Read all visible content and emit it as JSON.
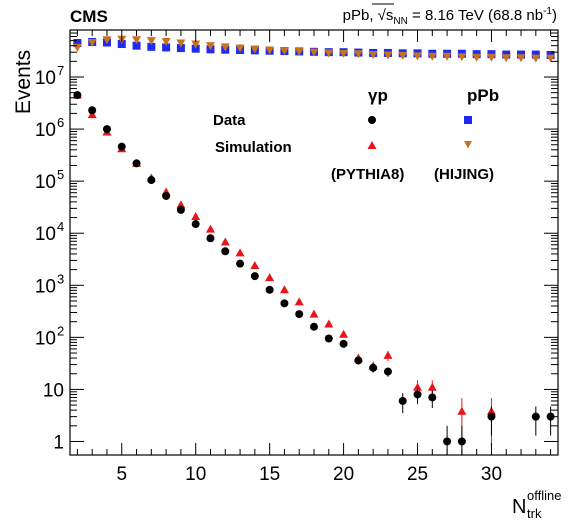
{
  "header": {
    "experiment": "CMS",
    "system_prefix": "pPb, ",
    "sqrt_symbol": "√",
    "s_var": "s",
    "s_sub": "NN",
    "energy": " = 8.16 TeV (68.8 nb",
    "lumi_exp": "-1",
    "close_paren": ")"
  },
  "legend": {
    "col_gamma": "γp",
    "col_ppb": "pPb",
    "row_data": "Data",
    "row_sim": "Simulation",
    "gen_gamma": "(PYTHIA8)",
    "gen_ppb": "(HIJING)"
  },
  "colors": {
    "data_gp": "#000000",
    "sim_gp": "#e8151a",
    "data_ppb": "#1f2bef",
    "sim_ppb": "#c8721c"
  },
  "chart_data": {
    "type": "scatter",
    "title": "",
    "ylabel": "Events",
    "xlabel_main": "N",
    "xlabel_sup": "offline",
    "xlabel_sub": "trk",
    "xlim": [
      1.5,
      34.5
    ],
    "ylim": [
      0.55,
      80000000
    ],
    "yscale": "log",
    "x_ticks": [
      5,
      10,
      15,
      20,
      25,
      30
    ],
    "y_ticks": [
      {
        "v": 1,
        "label": "1",
        "exp": ""
      },
      {
        "v": 10,
        "label": "10",
        "exp": ""
      },
      {
        "v": 100,
        "label": "10",
        "exp": "2"
      },
      {
        "v": 1000,
        "label": "10",
        "exp": "3"
      },
      {
        "v": 10000,
        "label": "10",
        "exp": "4"
      },
      {
        "v": 100000,
        "label": "10",
        "exp": "5"
      },
      {
        "v": 1000000,
        "label": "10",
        "exp": "6"
      },
      {
        "v": 10000000,
        "label": "10",
        "exp": "7"
      }
    ],
    "series": [
      {
        "name": "Data pPb",
        "marker": "square",
        "color": "#1f2bef",
        "x": [
          2,
          3,
          4,
          5,
          6,
          7,
          8,
          9,
          10,
          11,
          12,
          13,
          14,
          15,
          16,
          17,
          18,
          19,
          20,
          21,
          22,
          23,
          24,
          25,
          26,
          27,
          28,
          29,
          30,
          31,
          32,
          33,
          34
        ],
        "y": [
          45000000,
          47000000,
          46000000,
          43000000,
          40000000,
          38000000,
          37000000,
          36000000,
          35000000,
          34000000,
          33500000,
          33000000,
          32500000,
          32000000,
          31500000,
          31000000,
          30500000,
          30000000,
          30000000,
          29500000,
          29000000,
          29000000,
          28500000,
          28500000,
          28000000,
          28000000,
          28000000,
          27500000,
          27500000,
          27000000,
          27000000,
          27000000,
          26500000
        ]
      },
      {
        "name": "Simulation pPb",
        "marker": "triangle-down",
        "color": "#c8721c",
        "x": [
          2,
          3,
          4,
          5,
          6,
          7,
          8,
          9,
          10,
          11,
          12,
          13,
          14,
          15,
          16,
          17,
          18,
          19,
          20,
          21,
          22,
          23,
          24,
          25,
          26,
          27,
          28,
          29,
          30,
          31,
          32,
          33,
          34
        ],
        "y": [
          37000000,
          46000000,
          52000000,
          53000000,
          52000000,
          50000000,
          48000000,
          45000000,
          43000000,
          40000000,
          38000000,
          36000000,
          34500000,
          33000000,
          32000000,
          31000000,
          30000000,
          29000000,
          28500000,
          28000000,
          27000000,
          26500000,
          26000000,
          25500000,
          25000000,
          25000000,
          24500000,
          24000000,
          24000000,
          23500000,
          23500000,
          23000000,
          23000000
        ]
      },
      {
        "name": "Simulation γp",
        "marker": "triangle-up",
        "color": "#e8151a",
        "x": [
          2,
          3,
          4,
          5,
          6,
          7,
          8,
          9,
          10,
          11,
          12,
          13,
          14,
          15,
          16,
          17,
          18,
          19,
          20,
          21,
          22,
          23,
          24,
          25,
          26,
          27,
          28,
          29,
          30
        ],
        "y": [
          4500000,
          1900000,
          880000,
          420000,
          220000,
          115000,
          62000,
          35000,
          21000,
          12000,
          6800,
          4200,
          2400,
          1400,
          820,
          480,
          280,
          180,
          115,
          40,
          28,
          45,
          null,
          11,
          11,
          null,
          3.8,
          null,
          3.8
        ],
        "err": [
          0,
          0,
          0,
          0,
          0,
          0,
          0,
          0,
          0,
          0,
          0,
          0,
          0,
          0,
          0,
          0,
          0,
          0,
          0,
          8,
          6,
          10,
          0,
          4,
          4,
          0,
          3,
          0,
          3
        ]
      },
      {
        "name": "Data γp",
        "marker": "circle",
        "color": "#000000",
        "x": [
          2,
          3,
          4,
          5,
          6,
          7,
          8,
          9,
          10,
          11,
          12,
          13,
          14,
          15,
          16,
          17,
          18,
          19,
          20,
          21,
          22,
          23,
          24,
          25,
          26,
          27,
          28,
          29,
          30,
          31,
          32,
          33,
          34
        ],
        "y": [
          4500000,
          2300000,
          1000000,
          460000,
          220000,
          105000,
          52000,
          28000,
          15000,
          8000,
          4500,
          2600,
          1500,
          820,
          450,
          280,
          160,
          95,
          75,
          36,
          26,
          22,
          6,
          8,
          7,
          1,
          1,
          null,
          3,
          null,
          null,
          3,
          3
        ],
        "err": [
          0,
          0,
          0,
          0,
          0,
          0,
          0,
          0,
          0,
          0,
          0,
          0,
          0,
          0,
          0,
          0,
          0,
          0,
          0,
          6,
          5,
          4.5,
          2.5,
          2.8,
          2.6,
          1,
          1,
          0,
          1.7,
          0,
          0,
          1.7,
          1.7
        ]
      }
    ]
  }
}
